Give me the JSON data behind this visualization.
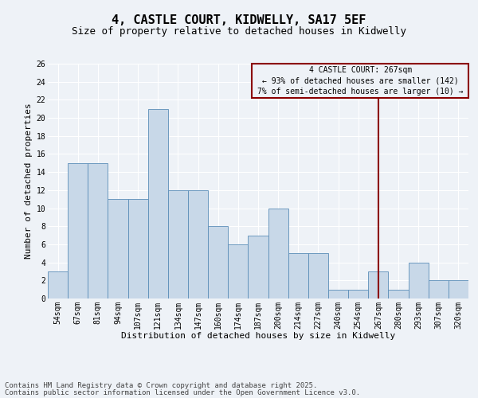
{
  "title_line1": "4, CASTLE COURT, KIDWELLY, SA17 5EF",
  "title_line2": "Size of property relative to detached houses in Kidwelly",
  "xlabel": "Distribution of detached houses by size in Kidwelly",
  "ylabel": "Number of detached properties",
  "categories": [
    "54sqm",
    "67sqm",
    "81sqm",
    "94sqm",
    "107sqm",
    "121sqm",
    "134sqm",
    "147sqm",
    "160sqm",
    "174sqm",
    "187sqm",
    "200sqm",
    "214sqm",
    "227sqm",
    "240sqm",
    "254sqm",
    "267sqm",
    "280sqm",
    "293sqm",
    "307sqm",
    "320sqm"
  ],
  "values": [
    3,
    15,
    15,
    11,
    11,
    21,
    12,
    12,
    8,
    6,
    7,
    10,
    5,
    5,
    1,
    1,
    3,
    1,
    4,
    2,
    2
  ],
  "bar_color": "#c8d8e8",
  "bar_edge_color": "#5b8db8",
  "ylim": [
    0,
    26
  ],
  "yticks": [
    0,
    2,
    4,
    6,
    8,
    10,
    12,
    14,
    16,
    18,
    20,
    22,
    24,
    26
  ],
  "annotation_line1": "4 CASTLE COURT: 267sqm",
  "annotation_line2": "← 93% of detached houses are smaller (142)",
  "annotation_line3": "7% of semi-detached houses are larger (10) →",
  "vline_x_index": 16,
  "vline_color": "#8b0000",
  "box_color": "#8b0000",
  "footnote1": "Contains HM Land Registry data © Crown copyright and database right 2025.",
  "footnote2": "Contains public sector information licensed under the Open Government Licence v3.0.",
  "bg_color": "#eef2f7",
  "grid_color": "#ffffff",
  "title_fontsize": 11,
  "subtitle_fontsize": 9,
  "axis_label_fontsize": 8,
  "tick_fontsize": 7,
  "annotation_fontsize": 7,
  "footnote_fontsize": 6.5
}
